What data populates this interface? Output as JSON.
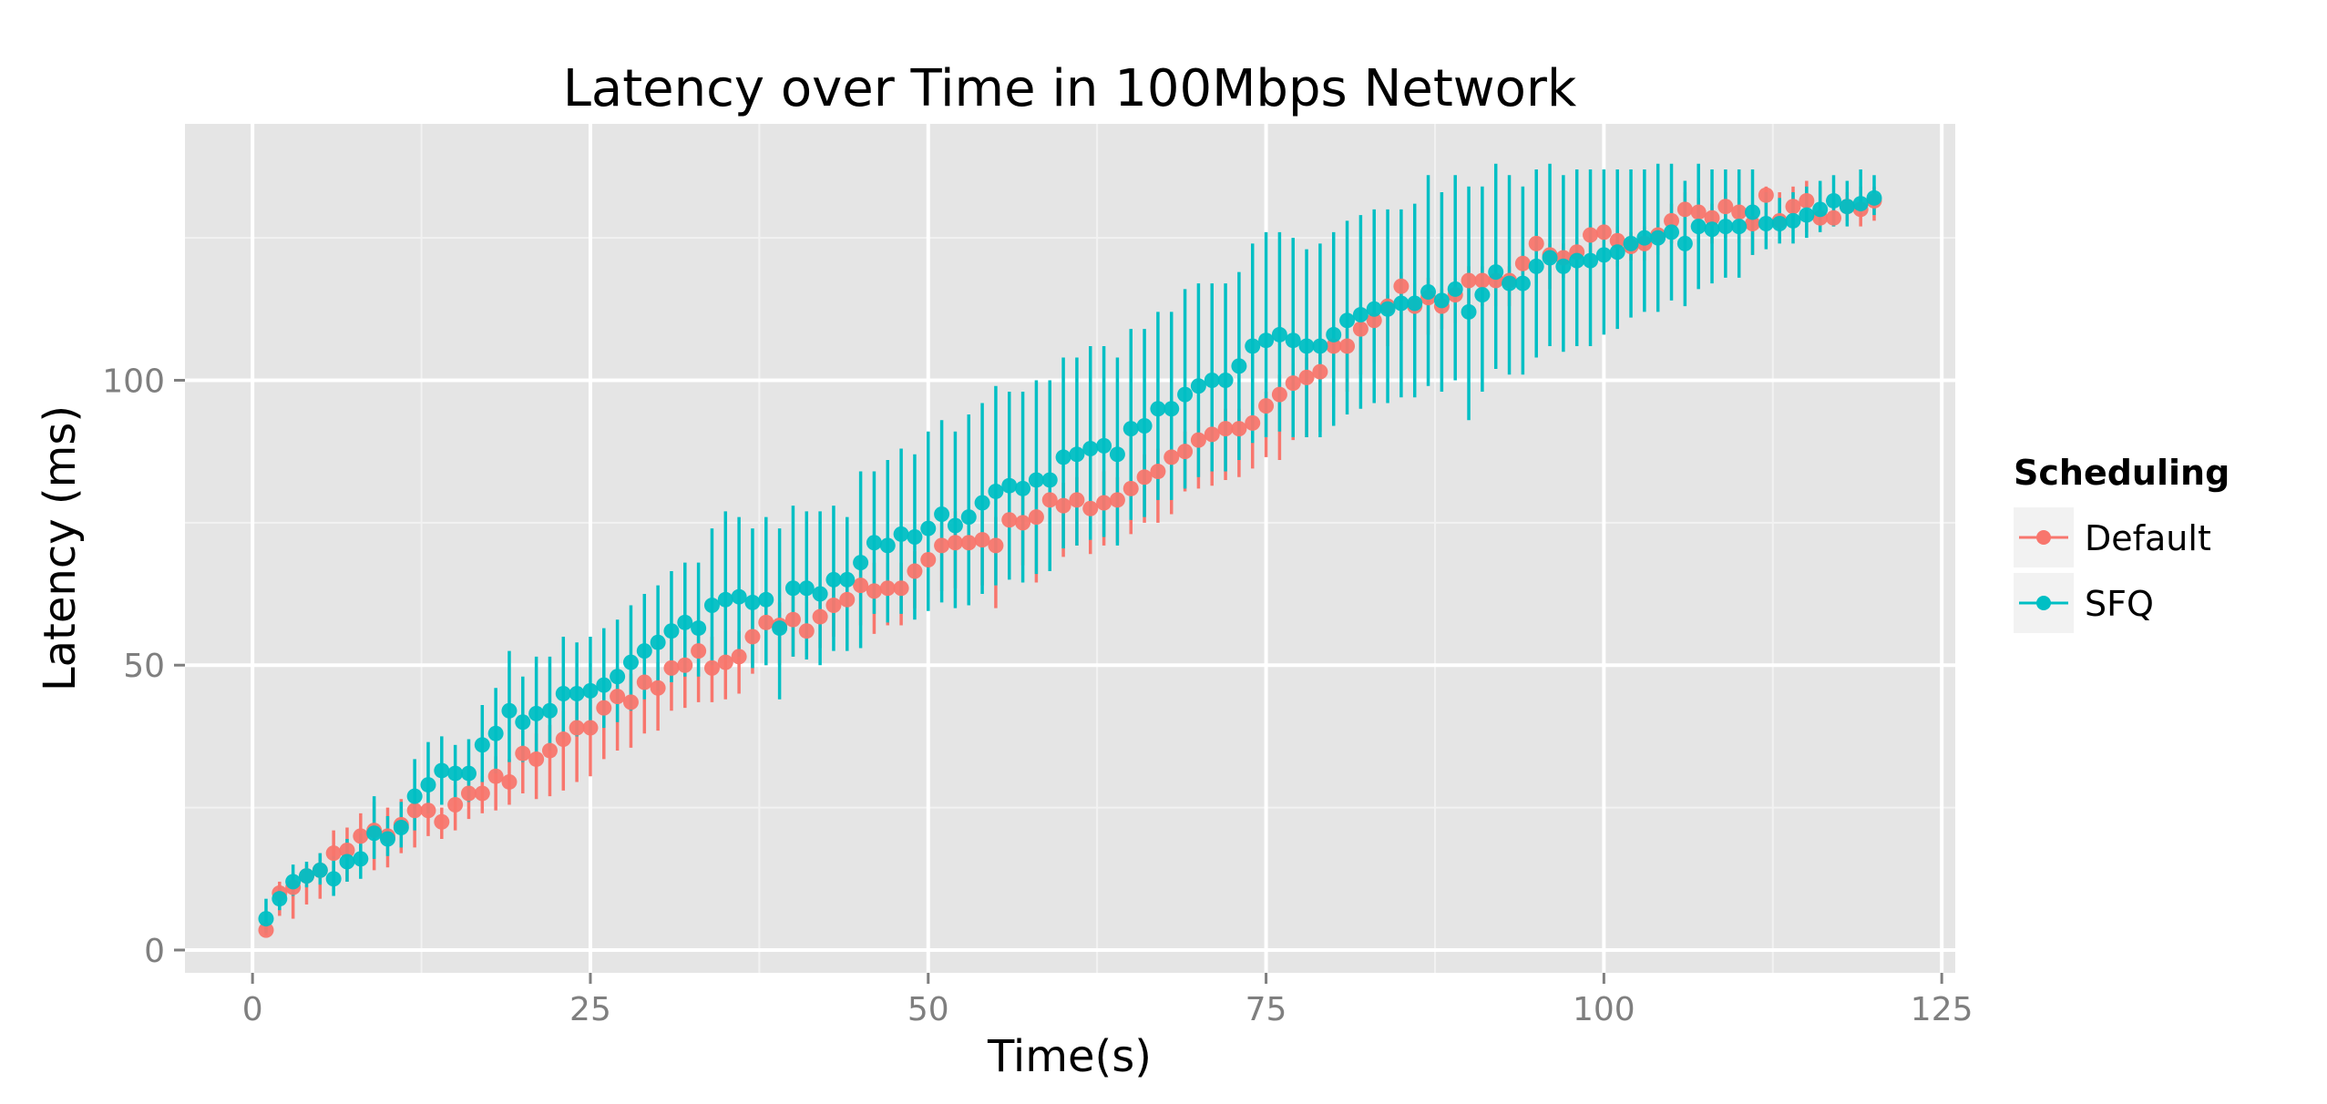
{
  "chart_data": {
    "type": "scatter",
    "title": "Latency over Time in 100Mbps Network",
    "xlabel": "Time(s)",
    "ylabel": "Latency (ms)",
    "xlim": [
      -5,
      126
    ],
    "ylim": [
      -4,
      145
    ],
    "x_ticks": [
      0,
      25,
      50,
      75,
      100,
      125
    ],
    "y_ticks": [
      0,
      50,
      100
    ],
    "x_tick_labels": [
      "0",
      "25",
      "50",
      "75",
      "100",
      "125"
    ],
    "y_tick_labels": [
      "0",
      "50",
      "100"
    ],
    "grid": true,
    "legend": {
      "title": "Scheduling",
      "position": "right"
    },
    "colors": {
      "Default": "#F8766D",
      "SFQ": "#00BFC4",
      "panel": "#E5E5E5",
      "grid": "#FFFFFF"
    },
    "x": [
      1,
      2,
      3,
      4,
      5,
      6,
      7,
      8,
      9,
      10,
      11,
      12,
      13,
      14,
      15,
      16,
      17,
      18,
      19,
      20,
      21,
      22,
      23,
      24,
      25,
      26,
      27,
      28,
      29,
      30,
      31,
      32,
      33,
      34,
      35,
      36,
      37,
      38,
      39,
      40,
      41,
      42,
      43,
      44,
      45,
      46,
      47,
      48,
      49,
      50,
      51,
      52,
      53,
      54,
      55,
      56,
      57,
      58,
      59,
      60,
      61,
      62,
      63,
      64,
      65,
      66,
      67,
      68,
      69,
      70,
      71,
      72,
      73,
      74,
      75,
      76,
      77,
      78,
      79,
      80,
      81,
      82,
      83,
      84,
      85,
      86,
      87,
      88,
      89,
      90,
      91,
      92,
      93,
      94,
      95,
      96,
      97,
      98,
      99,
      100,
      101,
      102,
      103,
      104,
      105,
      106,
      107,
      108,
      109,
      110,
      111,
      112,
      113,
      114,
      115,
      116,
      117,
      118,
      119,
      120
    ],
    "series": [
      {
        "name": "Default",
        "values": [
          3.5,
          10,
          11,
          13,
          14,
          17,
          17.5,
          20,
          21,
          20,
          22,
          24.5,
          24.5,
          22.5,
          25.5,
          27.5,
          27.5,
          30.5,
          29.5,
          34.5,
          33.5,
          35,
          37,
          39,
          39,
          42.5,
          44.5,
          43.5,
          47,
          46,
          49.5,
          50,
          52.5,
          49.5,
          50.5,
          51.5,
          55,
          57.5,
          57,
          58,
          56,
          58.5,
          60.5,
          61.5,
          64,
          63,
          63.5,
          63.5,
          66.5,
          68.5,
          71,
          71.5,
          71.5,
          72,
          71,
          75.5,
          75,
          76,
          79,
          78,
          79,
          77.5,
          78.5,
          79,
          81,
          83,
          84,
          86.5,
          87.5,
          89.5,
          90.5,
          91.5,
          91.5,
          92.5,
          95.5,
          97.5,
          99.5,
          100.5,
          101.5,
          106,
          106,
          109,
          110.5,
          113,
          116.5,
          113,
          114.5,
          113,
          115,
          117.5,
          117.5,
          117.5,
          117.5,
          120.5,
          124,
          122,
          121.5,
          122.5,
          125.5,
          126,
          124.5,
          123.5,
          124,
          125.5,
          128,
          130,
          129.5,
          128.5,
          130.5,
          129.5,
          127.5,
          132.5,
          128,
          130.5,
          131.5,
          128.5,
          128.5,
          130.5,
          130,
          131.5
        ],
        "lower": [
          2.5,
          6,
          5.5,
          8,
          9,
          11,
          12,
          15,
          14,
          14.5,
          17,
          18,
          20,
          19.5,
          21,
          23,
          24,
          24.5,
          25.5,
          27.5,
          26.5,
          27,
          28,
          29.5,
          30.5,
          33.5,
          35,
          35.5,
          38,
          38.5,
          42,
          42.5,
          43.5,
          43.5,
          44,
          45,
          48.5,
          50,
          50,
          51.5,
          51.5,
          53,
          55,
          56.5,
          57,
          55.5,
          57,
          57,
          60,
          62,
          63,
          63.5,
          64,
          64,
          60,
          66.5,
          67.5,
          64.5,
          67.5,
          69,
          71,
          69.5,
          71,
          71.5,
          73,
          75,
          75,
          76.5,
          80.5,
          81,
          81.5,
          82.5,
          83,
          84.5,
          86.5,
          86,
          89.5,
          90,
          91,
          97,
          98,
          101,
          103,
          106,
          107,
          109,
          108,
          109,
          110,
          111,
          113,
          113,
          113,
          116,
          117,
          116,
          118,
          119,
          121,
          122,
          120,
          121,
          121,
          122,
          124,
          124,
          124,
          124,
          125,
          124,
          122,
          128,
          126,
          127,
          126,
          127,
          127,
          128,
          127,
          128
        ],
        "upper": [
          4.5,
          12,
          13.5,
          15,
          17,
          21,
          21.5,
          24,
          26,
          25,
          26.5,
          28.5,
          28.5,
          25,
          29,
          31,
          30.5,
          34,
          33.5,
          38.5,
          38,
          39.5,
          42,
          43.5,
          44,
          46.5,
          49.5,
          48.5,
          51.5,
          50.5,
          55,
          55,
          56,
          55,
          56,
          56,
          60,
          61,
          61,
          63,
          61,
          63,
          64,
          66,
          68,
          68,
          68,
          68,
          70,
          73,
          75,
          77,
          77,
          77,
          76,
          79,
          80,
          82,
          84,
          82,
          83,
          82,
          84,
          83,
          86,
          87,
          88,
          91,
          91,
          93,
          94,
          95,
          95,
          96,
          98,
          101,
          103,
          104,
          105,
          108,
          109,
          112,
          112,
          115,
          119,
          117,
          118,
          116,
          118,
          120,
          120,
          121,
          120,
          123,
          126,
          124,
          124,
          125,
          127,
          128,
          127,
          126,
          127,
          128,
          131,
          133,
          132,
          131,
          133,
          132,
          131,
          134,
          133,
          134,
          135,
          134,
          132,
          133,
          134,
          134
        ]
      },
      {
        "name": "SFQ",
        "values": [
          5.5,
          9,
          12,
          13,
          14,
          12.5,
          15.5,
          16,
          20.5,
          19.5,
          21.5,
          27,
          29,
          31.5,
          31,
          31,
          36,
          38,
          42,
          40,
          41.5,
          42,
          45,
          45,
          45.5,
          46.5,
          48,
          50.5,
          52.5,
          54,
          56,
          57.5,
          56.5,
          60.5,
          61.5,
          62,
          61,
          61.5,
          56.5,
          63.5,
          63.5,
          62.5,
          65,
          65,
          68,
          71.5,
          71,
          73,
          72.5,
          74,
          76.5,
          74.5,
          76,
          78.5,
          80.5,
          81.5,
          81,
          82.5,
          82.5,
          86.5,
          87,
          88,
          88.5,
          87,
          91.5,
          92,
          95,
          95,
          97.5,
          99,
          100,
          100,
          102.5,
          106,
          107,
          108,
          107,
          106,
          106,
          108,
          110.5,
          111.5,
          112.5,
          112.5,
          113.5,
          113.5,
          115.5,
          114,
          116,
          112,
          115,
          119,
          117,
          117,
          120,
          121.5,
          120,
          121,
          121,
          122,
          122.5,
          124,
          125,
          125,
          126,
          124,
          127,
          126.5,
          127,
          127,
          129.5,
          127.5,
          127.5,
          128,
          129,
          130,
          131.5,
          130.5,
          131,
          132
        ],
        "lower": [
          3,
          7,
          9.5,
          11,
          11.5,
          9.5,
          12,
          12.5,
          16,
          16.5,
          18,
          21,
          24,
          25.5,
          26.5,
          26,
          29.5,
          31,
          33,
          33,
          34.5,
          35,
          37,
          37.5,
          38,
          39,
          40,
          42,
          44,
          45.5,
          47,
          48,
          48,
          50,
          51,
          51.5,
          49.5,
          50,
          44,
          51.5,
          51,
          50,
          52.5,
          52.5,
          53,
          59,
          57.5,
          59,
          58,
          59.5,
          61,
          60,
          60.5,
          62.5,
          64,
          65,
          64.5,
          66,
          66.5,
          70.5,
          71,
          72,
          72.5,
          71,
          75.5,
          76,
          79,
          79,
          81,
          83,
          84,
          84,
          86,
          89,
          90,
          91,
          90,
          90,
          90,
          92,
          94,
          95,
          96,
          96,
          97,
          97,
          99,
          98,
          100,
          93,
          98,
          102,
          101,
          101,
          104,
          106,
          105,
          106,
          106,
          108,
          109,
          111,
          112,
          112,
          114,
          113,
          116,
          117,
          118,
          118,
          122,
          123,
          124,
          124,
          125,
          126,
          127,
          127,
          129,
          129
        ],
        "upper": [
          9,
          11,
          15,
          15.5,
          17,
          16.5,
          19.5,
          20.5,
          27,
          23.5,
          26,
          33.5,
          36.5,
          37.5,
          36,
          37,
          43,
          46,
          52.5,
          48,
          51.5,
          51.5,
          55,
          54,
          55,
          56.5,
          58,
          60.5,
          62.5,
          64,
          66.5,
          68,
          68,
          74,
          77,
          76,
          74,
          76,
          74,
          78,
          77,
          77,
          78,
          76,
          84,
          84,
          86,
          88,
          87,
          91,
          93,
          91,
          94,
          96,
          99,
          98,
          98,
          100,
          100,
          104,
          104,
          106,
          106,
          104,
          109,
          109,
          112,
          112,
          116,
          117,
          117,
          117,
          119,
          124,
          126,
          126,
          125,
          123,
          124,
          126,
          128,
          129,
          130,
          130,
          130,
          131,
          136,
          133,
          136,
          134,
          134,
          138,
          136,
          134,
          137,
          138,
          136,
          137,
          137,
          137,
          137,
          137,
          137,
          138,
          138,
          135,
          138,
          137,
          137,
          137,
          137,
          133,
          132,
          133,
          134,
          135,
          136,
          135,
          137,
          136
        ]
      }
    ]
  }
}
